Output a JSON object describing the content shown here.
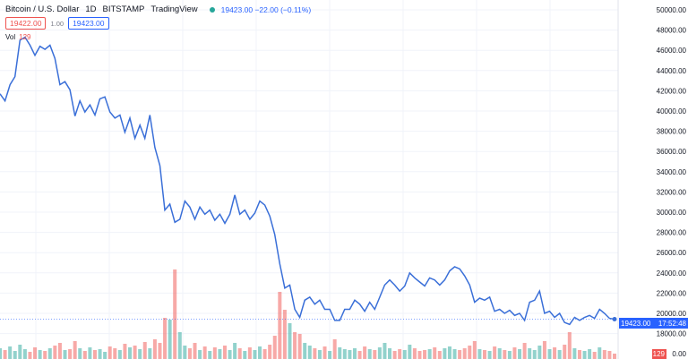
{
  "header": {
    "symbol": "Bitcoin / U.S. Dollar",
    "interval": "1D",
    "exchange": "BITSTAMP",
    "source": "TradingView",
    "status_color": "#26a69a",
    "last": "19423.00",
    "change": "−22.00",
    "change_pct": "(−0.11%)"
  },
  "quote": {
    "bid": "19422.00",
    "spread": "1.00",
    "ask": "19423.00"
  },
  "volume_legend": {
    "label": "Vol",
    "value": "129"
  },
  "price_label": {
    "value": "19423.00",
    "countdown": "17:52:48",
    "color": "#2962ff"
  },
  "volume_label": {
    "value": "129",
    "color": "#ef5350"
  },
  "chart_data": {
    "type": "line",
    "ylim": [
      16000,
      50400
    ],
    "y_ticks": [
      "50000.00",
      "48000.00",
      "46000.00",
      "44000.00",
      "42000.00",
      "40000.00",
      "38000.00",
      "36000.00",
      "34000.00",
      "32000.00",
      "30000.00",
      "28000.00",
      "26000.00",
      "24000.00",
      "22000.00",
      "20000.00",
      "18000.00"
    ],
    "last_axis_label": "0.00",
    "grid": true,
    "line_color": "#3a6fd8",
    "up_color": "#26a69a",
    "down_color": "#ef5350",
    "series": [
      {
        "values": [
          41700,
          41000,
          42600,
          43400,
          47000,
          47300,
          46500,
          45500,
          46400,
          46100,
          46500,
          45200,
          42600,
          42900,
          42100,
          39500,
          41000,
          39900,
          40600,
          39600,
          41200,
          41400,
          39900,
          39300,
          39600,
          37900,
          39300,
          37300,
          38600,
          37300,
          39600,
          36400,
          34600,
          30200,
          30800,
          29000,
          29300,
          31100,
          30500,
          29300,
          30500,
          29800,
          30200,
          29200,
          29800,
          28900,
          29800,
          31700,
          29800,
          30200,
          29300,
          29900,
          31100,
          30700,
          29600,
          27800,
          24900,
          22500,
          22800,
          20400,
          19600,
          21300,
          21600,
          20900,
          21300,
          20400,
          20400,
          19300,
          19300,
          20400,
          20400,
          21300,
          20900,
          20200,
          21100,
          20400,
          21600,
          22800,
          23300,
          22800,
          22200,
          22700,
          24000,
          23500,
          23100,
          22700,
          23500,
          23300,
          22800,
          23300,
          24200,
          24600,
          24400,
          23700,
          22800,
          21100,
          21500,
          21300,
          21600,
          20200,
          20400,
          20000,
          20300,
          19800,
          20000,
          19300,
          21100,
          21300,
          22200,
          20000,
          20200,
          19600,
          20000,
          19100,
          18900,
          19600,
          19300,
          19600,
          19800,
          19500,
          20400,
          20000,
          19500,
          19423
        ]
      }
    ],
    "volume": [
      12,
      10,
      14,
      9,
      16,
      11,
      8,
      13,
      10,
      9,
      12,
      15,
      18,
      10,
      11,
      20,
      12,
      9,
      13,
      10,
      11,
      8,
      14,
      12,
      10,
      17,
      13,
      15,
      11,
      19,
      12,
      22,
      18,
      46,
      44,
      100,
      30,
      15,
      12,
      18,
      10,
      14,
      9,
      13,
      11,
      15,
      10,
      18,
      12,
      9,
      13,
      10,
      14,
      11,
      16,
      26,
      75,
      55,
      40,
      30,
      28,
      18,
      15,
      12,
      10,
      14,
      9,
      22,
      13,
      11,
      10,
      12,
      9,
      14,
      11,
      10,
      13,
      18,
      12,
      9,
      11,
      10,
      16,
      12,
      9,
      10,
      11,
      13,
      9,
      12,
      14,
      11,
      10,
      12,
      15,
      20,
      11,
      10,
      9,
      14,
      12,
      10,
      9,
      13,
      11,
      18,
      12,
      10,
      15,
      20,
      11,
      13,
      10,
      16,
      30,
      12,
      10,
      9,
      11,
      8,
      13,
      10,
      9,
      6
    ]
  }
}
